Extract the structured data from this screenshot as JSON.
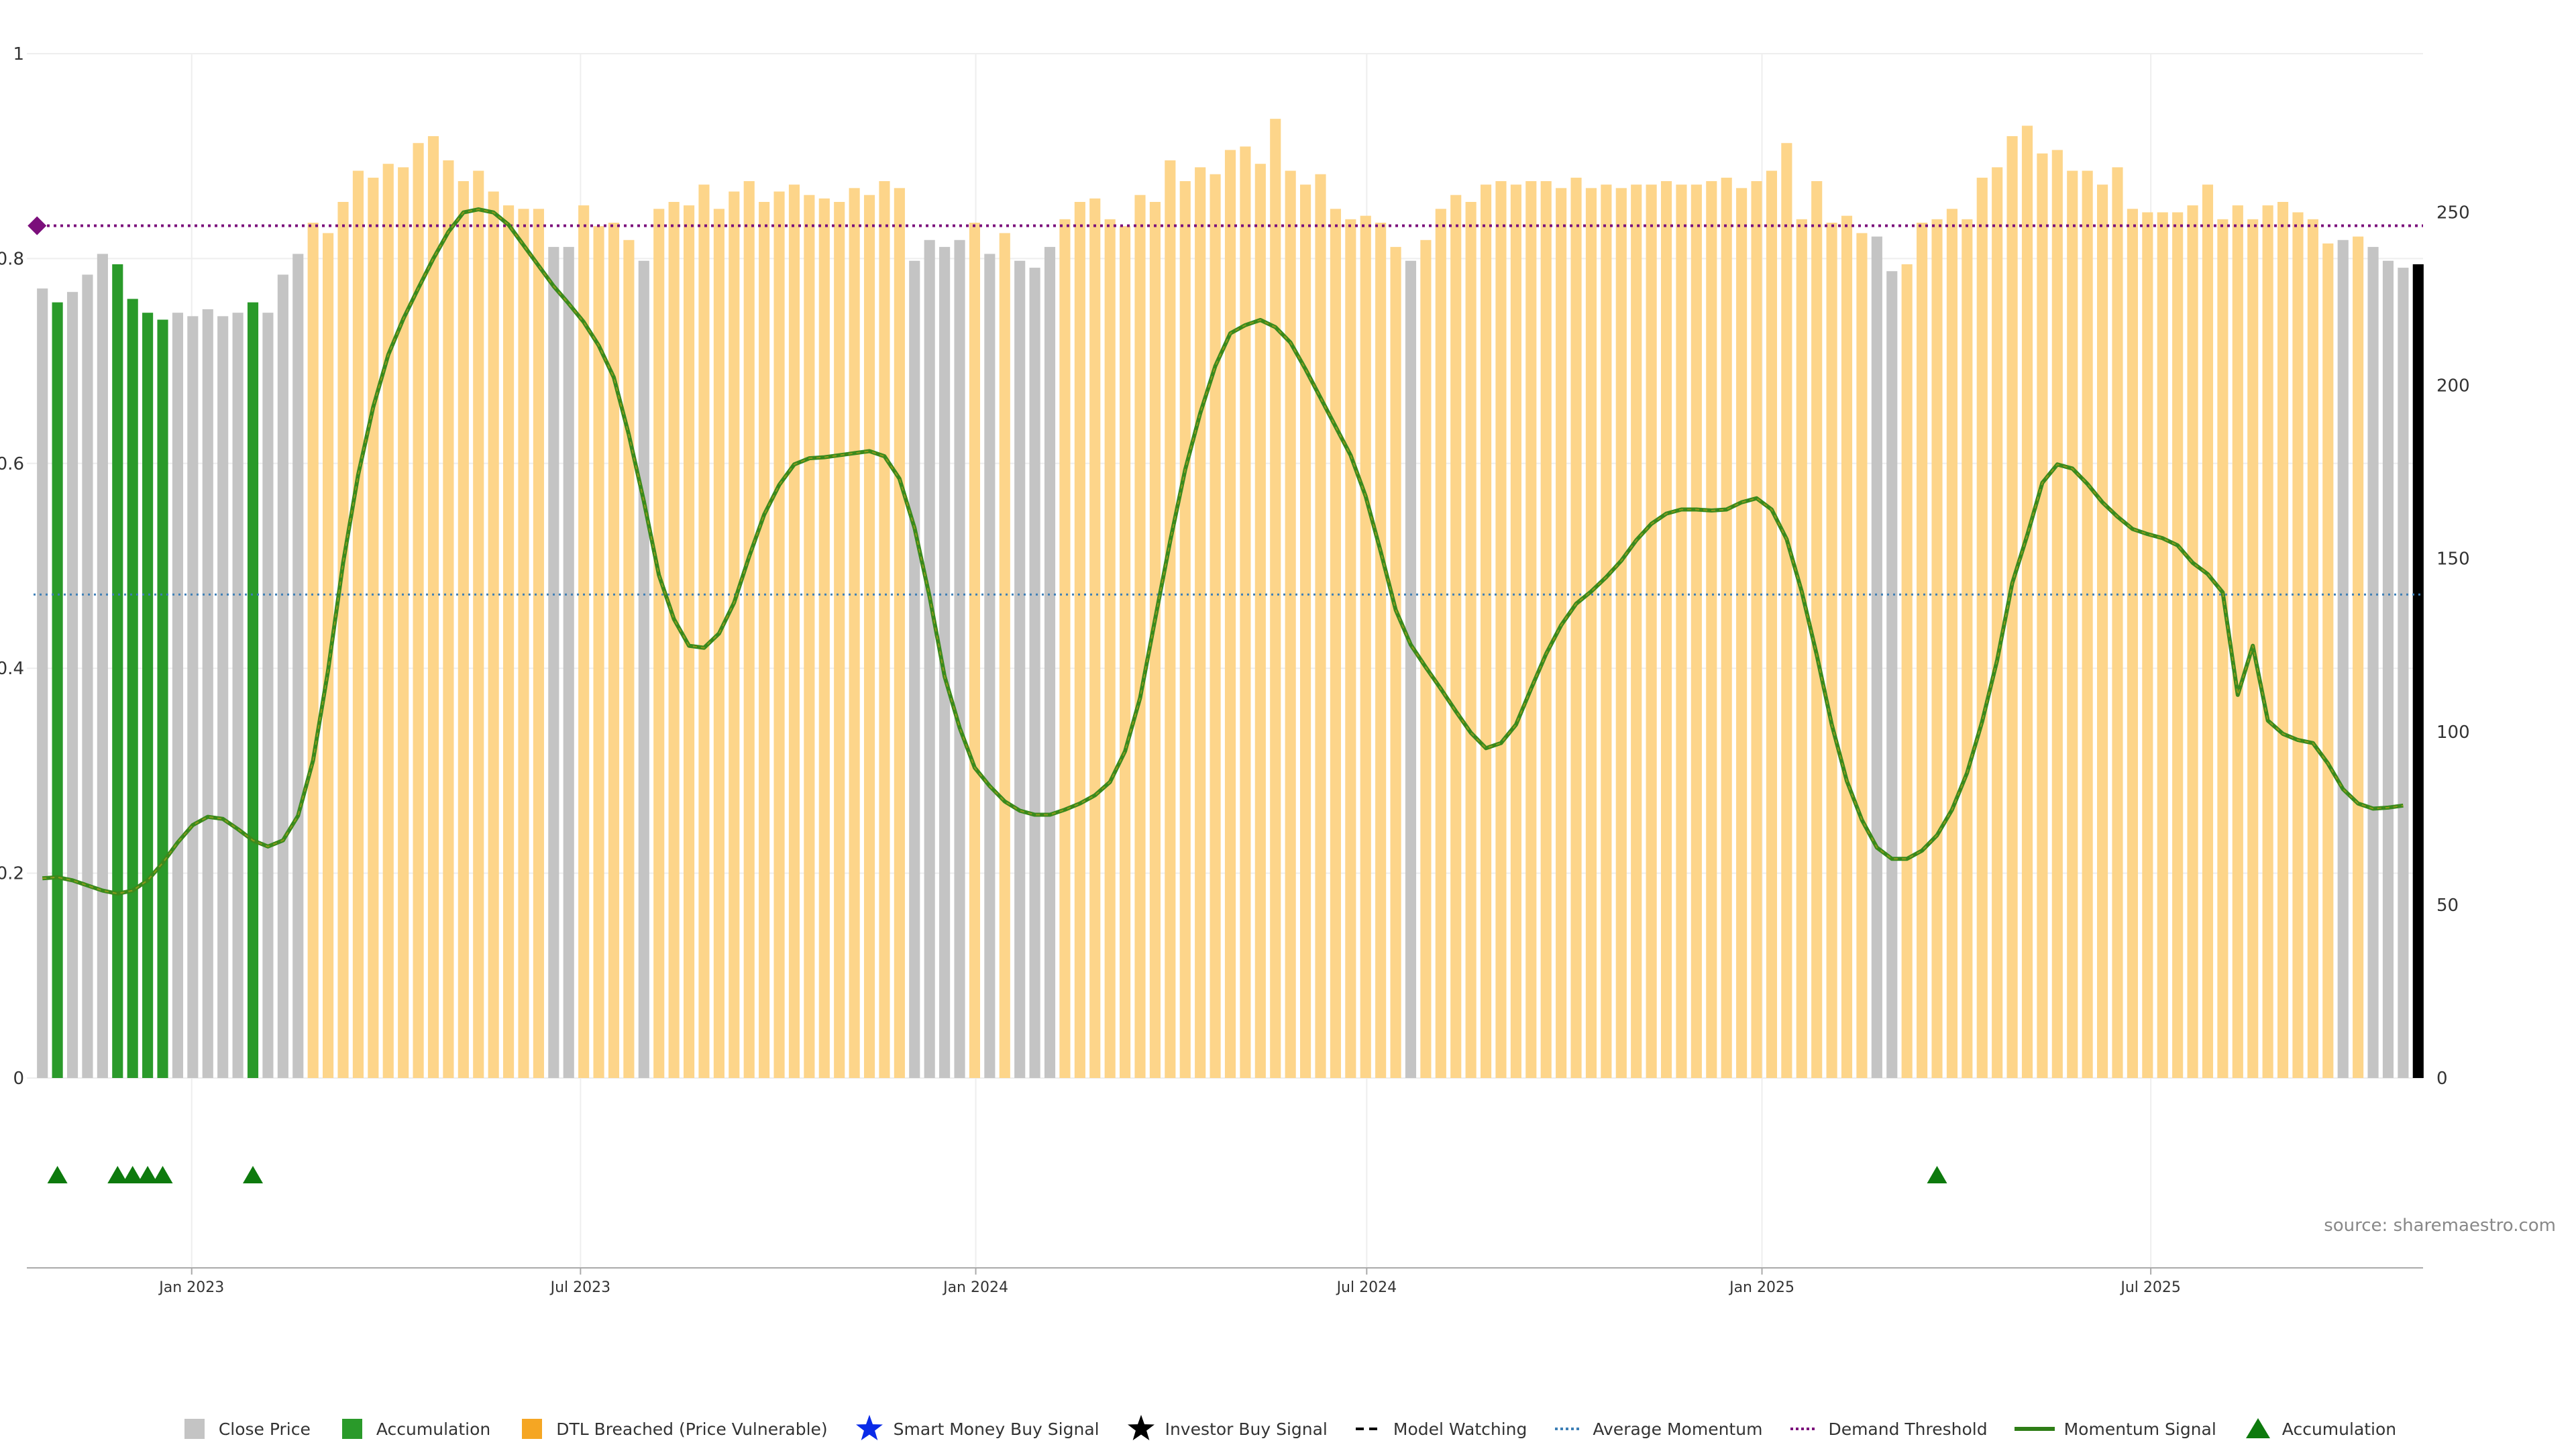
{
  "chart_data": {
    "type": "bar",
    "title": "",
    "x_start": "2022-10-20",
    "x_step_days": 7,
    "categories_x_ticks": [
      "Jan 2023",
      "Jul 2023",
      "Jan 2024",
      "Jul 2024",
      "Jan 2025",
      "Jul 2025"
    ],
    "x_tick_dates": [
      "2023-01-01",
      "2023-07-01",
      "2024-01-01",
      "2024-07-01",
      "2025-01-01",
      "2025-07-01"
    ],
    "y_left": {
      "ticks": [
        "0",
        "0.2",
        "0.4",
        "0.6",
        "0.8",
        "1"
      ],
      "range": [
        0,
        1
      ]
    },
    "y_right": {
      "ticks": [
        "0",
        "50",
        "100",
        "150",
        "200",
        "250"
      ],
      "range": [
        0,
        290
      ]
    },
    "bar_values": [
      228,
      224,
      227,
      232,
      238,
      235,
      225,
      221,
      219,
      221,
      220,
      222,
      220,
      221,
      224,
      221,
      232,
      238,
      247,
      244,
      253,
      262,
      260,
      264,
      263,
      270,
      272,
      265,
      259,
      262,
      256,
      252,
      251,
      251,
      240,
      240,
      252,
      246,
      247,
      242,
      236,
      251,
      253,
      252,
      258,
      251,
      256,
      259,
      253,
      256,
      258,
      255,
      254,
      253,
      257,
      255,
      259,
      257,
      236,
      242,
      240,
      242,
      247,
      238,
      244,
      236,
      234,
      240,
      248,
      253,
      254,
      248,
      246,
      255,
      253,
      265,
      259,
      263,
      261,
      268,
      269,
      264,
      277,
      262,
      258,
      261,
      251,
      248,
      249,
      247,
      240,
      236,
      242,
      251,
      255,
      253,
      258,
      259,
      258,
      259,
      259,
      257,
      260,
      257,
      258,
      257,
      258,
      258,
      259,
      258,
      258,
      259,
      260,
      257,
      259,
      262,
      270,
      248,
      259,
      247,
      249,
      244,
      243,
      233,
      235,
      247,
      248,
      251,
      248,
      260,
      263,
      272,
      275,
      267,
      268,
      262,
      262,
      258,
      263,
      251,
      250,
      250,
      250,
      252,
      258,
      248,
      252,
      248,
      252,
      253,
      250,
      248,
      241,
      242,
      243,
      240,
      236,
      234,
      235
    ],
    "bar_categories": [
      "gray",
      "green",
      "gray",
      "gray",
      "gray",
      "green",
      "green",
      "green",
      "green",
      "gray",
      "gray",
      "gray",
      "gray",
      "gray",
      "green",
      "gray",
      "gray",
      "gray",
      "orange",
      "orange",
      "orange",
      "orange",
      "orange",
      "orange",
      "orange",
      "orange",
      "orange",
      "orange",
      "orange",
      "orange",
      "orange",
      "orange",
      "orange",
      "orange",
      "gray",
      "gray",
      "orange",
      "orange",
      "orange",
      "orange",
      "gray",
      "orange",
      "orange",
      "orange",
      "orange",
      "orange",
      "orange",
      "orange",
      "orange",
      "orange",
      "orange",
      "orange",
      "orange",
      "orange",
      "orange",
      "orange",
      "orange",
      "orange",
      "gray",
      "gray",
      "gray",
      "gray",
      "orange",
      "gray",
      "orange",
      "gray",
      "gray",
      "gray",
      "orange",
      "orange",
      "orange",
      "orange",
      "orange",
      "orange",
      "orange",
      "orange",
      "orange",
      "orange",
      "orange",
      "orange",
      "orange",
      "orange",
      "orange",
      "orange",
      "orange",
      "orange",
      "orange",
      "orange",
      "orange",
      "orange",
      "orange",
      "gray",
      "orange",
      "orange",
      "orange",
      "orange",
      "orange",
      "orange",
      "orange",
      "orange",
      "orange",
      "orange",
      "orange",
      "orange",
      "orange",
      "orange",
      "orange",
      "orange",
      "orange",
      "orange",
      "orange",
      "orange",
      "orange",
      "orange",
      "orange",
      "orange",
      "orange",
      "orange",
      "orange",
      "orange",
      "orange",
      "orange",
      "gray",
      "gray",
      "orange",
      "orange",
      "orange",
      "orange",
      "orange",
      "orange",
      "orange",
      "orange",
      "orange",
      "orange",
      "orange",
      "orange",
      "orange",
      "orange",
      "orange",
      "orange",
      "orange",
      "orange",
      "orange",
      "orange",
      "orange",
      "orange",
      "orange",
      "orange",
      "orange",
      "orange",
      "orange",
      "orange",
      "orange",
      "gray",
      "orange",
      "gray",
      "gray",
      "gray"
    ],
    "momentum_signal": [
      [
        0,
        0.195
      ],
      [
        1,
        0.196
      ],
      [
        2,
        0.193
      ],
      [
        3,
        0.188
      ],
      [
        4,
        0.183
      ],
      [
        5,
        0.18
      ],
      [
        6,
        0.183
      ],
      [
        7,
        0.193
      ],
      [
        8,
        0.21
      ],
      [
        9,
        0.23
      ],
      [
        10,
        0.247
      ],
      [
        11,
        0.255
      ],
      [
        12,
        0.253
      ],
      [
        13,
        0.243
      ],
      [
        14,
        0.232
      ],
      [
        15,
        0.226
      ],
      [
        16,
        0.232
      ],
      [
        17,
        0.256
      ],
      [
        18,
        0.31
      ],
      [
        19,
        0.398
      ],
      [
        20,
        0.503
      ],
      [
        21,
        0.589
      ],
      [
        22,
        0.655
      ],
      [
        23,
        0.706
      ],
      [
        24,
        0.741
      ],
      [
        25,
        0.771
      ],
      [
        26,
        0.8
      ],
      [
        27,
        0.826
      ],
      [
        28,
        0.845
      ],
      [
        29,
        0.848
      ],
      [
        30,
        0.845
      ],
      [
        31,
        0.833
      ],
      [
        32,
        0.813
      ],
      [
        33,
        0.793
      ],
      [
        34,
        0.773
      ],
      [
        35,
        0.756
      ],
      [
        36,
        0.738
      ],
      [
        37,
        0.715
      ],
      [
        38,
        0.684
      ],
      [
        39,
        0.628
      ],
      [
        40,
        0.563
      ],
      [
        41,
        0.491
      ],
      [
        42,
        0.448
      ],
      [
        43,
        0.422
      ],
      [
        44,
        0.42
      ],
      [
        45,
        0.434
      ],
      [
        46,
        0.464
      ],
      [
        47,
        0.509
      ],
      [
        48,
        0.55
      ],
      [
        49,
        0.579
      ],
      [
        50,
        0.599
      ],
      [
        51,
        0.605
      ],
      [
        52,
        0.606
      ],
      [
        53,
        0.608
      ],
      [
        54,
        0.61
      ],
      [
        55,
        0.612
      ],
      [
        56,
        0.607
      ],
      [
        57,
        0.585
      ],
      [
        58,
        0.537
      ],
      [
        59,
        0.47
      ],
      [
        60,
        0.392
      ],
      [
        61,
        0.342
      ],
      [
        62,
        0.303
      ],
      [
        63,
        0.285
      ],
      [
        64,
        0.27
      ],
      [
        65,
        0.261
      ],
      [
        66,
        0.257
      ],
      [
        67,
        0.257
      ],
      [
        68,
        0.262
      ],
      [
        69,
        0.268
      ],
      [
        70,
        0.276
      ],
      [
        71,
        0.289
      ],
      [
        72,
        0.319
      ],
      [
        73,
        0.371
      ],
      [
        74,
        0.448
      ],
      [
        75,
        0.524
      ],
      [
        76,
        0.594
      ],
      [
        77,
        0.649
      ],
      [
        78,
        0.695
      ],
      [
        79,
        0.727
      ],
      [
        80,
        0.735
      ],
      [
        81,
        0.74
      ],
      [
        82,
        0.733
      ],
      [
        83,
        0.718
      ],
      [
        84,
        0.692
      ],
      [
        85,
        0.664
      ],
      [
        86,
        0.636
      ],
      [
        87,
        0.608
      ],
      [
        88,
        0.568
      ],
      [
        89,
        0.514
      ],
      [
        90,
        0.457
      ],
      [
        91,
        0.423
      ],
      [
        92,
        0.401
      ],
      [
        93,
        0.38
      ],
      [
        94,
        0.358
      ],
      [
        95,
        0.337
      ],
      [
        96,
        0.322
      ],
      [
        97,
        0.327
      ],
      [
        98,
        0.345
      ],
      [
        99,
        0.38
      ],
      [
        100,
        0.414
      ],
      [
        101,
        0.442
      ],
      [
        102,
        0.463
      ],
      [
        103,
        0.475
      ],
      [
        104,
        0.489
      ],
      [
        105,
        0.505
      ],
      [
        106,
        0.525
      ],
      [
        107,
        0.541
      ],
      [
        108,
        0.551
      ],
      [
        109,
        0.555
      ],
      [
        110,
        0.555
      ],
      [
        111,
        0.554
      ],
      [
        112,
        0.555
      ],
      [
        113,
        0.562
      ],
      [
        114,
        0.566
      ],
      [
        115,
        0.555
      ],
      [
        116,
        0.526
      ],
      [
        117,
        0.475
      ],
      [
        118,
        0.413
      ],
      [
        119,
        0.345
      ],
      [
        120,
        0.29
      ],
      [
        121,
        0.252
      ],
      [
        122,
        0.225
      ],
      [
        123,
        0.214
      ],
      [
        124,
        0.214
      ],
      [
        125,
        0.222
      ],
      [
        126,
        0.237
      ],
      [
        127,
        0.262
      ],
      [
        128,
        0.298
      ],
      [
        129,
        0.348
      ],
      [
        130,
        0.408
      ],
      [
        131,
        0.483
      ],
      [
        132,
        0.53
      ],
      [
        133,
        0.581
      ],
      [
        134,
        0.599
      ],
      [
        135,
        0.595
      ],
      [
        136,
        0.58
      ],
      [
        137,
        0.562
      ],
      [
        138,
        0.548
      ],
      [
        139,
        0.536
      ],
      [
        140,
        0.531
      ],
      [
        141,
        0.527
      ],
      [
        142,
        0.52
      ],
      [
        143,
        0.503
      ],
      [
        144,
        0.492
      ],
      [
        145,
        0.474
      ],
      [
        146,
        0.374
      ],
      [
        147,
        0.422
      ],
      [
        148,
        0.349
      ],
      [
        149,
        0.336
      ],
      [
        150,
        0.33
      ],
      [
        151,
        0.327
      ],
      [
        152,
        0.307
      ],
      [
        153,
        0.282
      ],
      [
        154,
        0.268
      ],
      [
        155,
        0.263
      ],
      [
        156,
        0.264
      ],
      [
        157,
        0.266
      ]
    ],
    "demand_threshold": 0.832,
    "demand_threshold_marker": [
      0,
      0.832
    ],
    "average_momentum": 0.472,
    "accumulation_markers": [
      1,
      5,
      6,
      7,
      8,
      14,
      126
    ],
    "series": [
      {
        "name": "Close Price",
        "color": "#c4c4c4",
        "symbol": "square"
      },
      {
        "name": "Accumulation",
        "color": "#2a9a2a",
        "symbol": "square"
      },
      {
        "name": "DTL Breached (Price Vulnerable)",
        "color": "#f5a623",
        "symbol": "square"
      },
      {
        "name": "Smart Money Buy Signal",
        "color": "#0a2be8",
        "symbol": "star"
      },
      {
        "name": "Investor Buy Signal",
        "color": "#000000",
        "symbol": "star"
      },
      {
        "name": "Model Watching",
        "color": "#000000",
        "symbol": "dash"
      },
      {
        "name": "Average Momentum",
        "color": "#3d7fb6",
        "symbol": "dotted"
      },
      {
        "name": "Demand Threshold",
        "color": "#7b0f7b",
        "symbol": "dotted"
      },
      {
        "name": "Momentum Signal",
        "color": "#2e7d16",
        "symbol": "line"
      },
      {
        "name": "Accumulation",
        "color": "#0d7a0d",
        "symbol": "triangle"
      }
    ],
    "source": "source: sharemaestro.com",
    "grid": true,
    "legend_position": "bottom"
  }
}
